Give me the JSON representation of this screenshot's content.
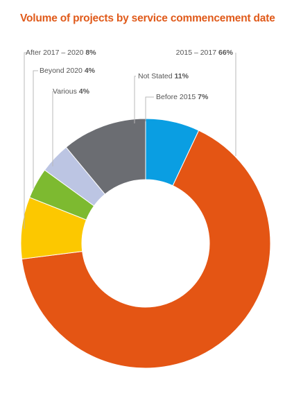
{
  "chart_data": {
    "type": "pie",
    "variant": "donut",
    "title": "Volume of projects by service commencement date",
    "title_color": "#e05a1a",
    "slices": [
      {
        "label": "Before 2015",
        "value": 7,
        "display_value": "7%",
        "color": "#0a9ee2"
      },
      {
        "label": "2015 – 2017",
        "value": 66,
        "display_value": "66%",
        "color": "#e45514"
      },
      {
        "label": "After 2017 – 2020",
        "value": 8,
        "display_value": "8%",
        "color": "#fcc800"
      },
      {
        "label": "Beyond 2020",
        "value": 4,
        "display_value": "4%",
        "color": "#7dba30"
      },
      {
        "label": "Various",
        "value": 4,
        "display_value": "4%",
        "color": "#bcc5e3"
      },
      {
        "label": "Not Stated",
        "value": 11,
        "display_value": "11%",
        "color": "#6b6d72"
      }
    ]
  }
}
